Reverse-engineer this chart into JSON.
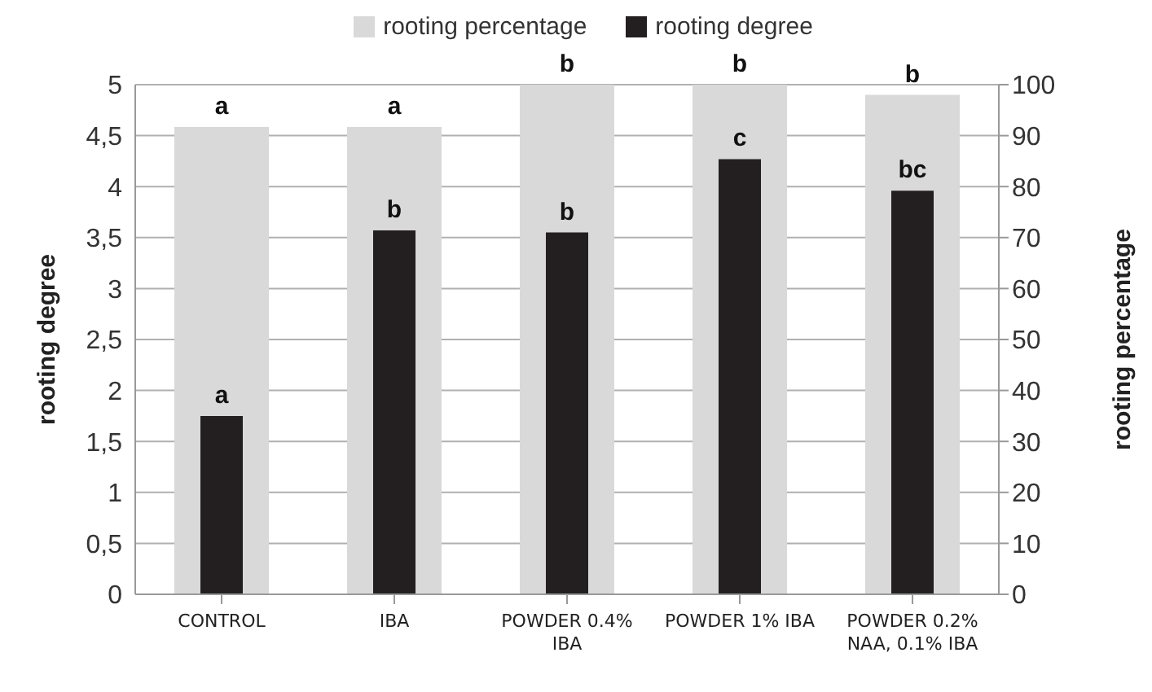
{
  "chart_data": {
    "type": "bar",
    "categories": [
      "CONTROL",
      "IBA",
      "POWDER 0.4% IBA",
      "POWDER 1% IBA",
      "POWDER 0.2% NAA, 0.1% IBA"
    ],
    "series": [
      {
        "name": "rooting percentage",
        "color": "#d9d9d9",
        "axis": "y2",
        "values": [
          91.7,
          91.7,
          100,
          100,
          98
        ],
        "value_labels": [
          "a",
          "a",
          "b",
          "b",
          "b"
        ]
      },
      {
        "name": "rooting degree",
        "color": "#231f20",
        "values": [
          1.75,
          3.57,
          3.55,
          4.27,
          3.96
        ],
        "value_labels": [
          "a",
          "b",
          "b",
          "c",
          "bc"
        ]
      }
    ],
    "ylabel": "rooting degree",
    "y2label": "rooting percentage",
    "ylim": [
      0,
      5
    ],
    "yticks": [
      0,
      {
        "value": 0.5,
        "label": "0,5"
      },
      1,
      {
        "value": 1.5,
        "label": "1,5"
      },
      2,
      {
        "value": 2.5,
        "label": "2,5"
      },
      3,
      {
        "value": 3.5,
        "label": "3,5"
      },
      4,
      {
        "value": 4.5,
        "label": "4,5"
      },
      5
    ],
    "y2lim": [
      0,
      100
    ],
    "y2ticks": [
      0,
      10,
      20,
      30,
      40,
      50,
      60,
      70,
      80,
      90,
      100
    ],
    "grid": "y",
    "legend": "top"
  }
}
